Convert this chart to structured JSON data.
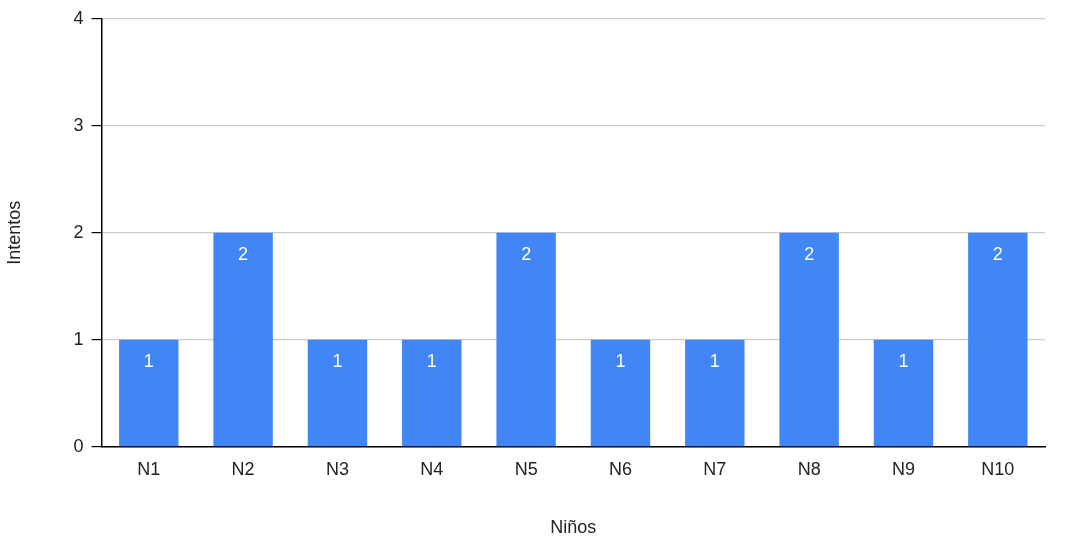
{
  "chart_data": {
    "type": "bar",
    "xlabel": "Niños",
    "ylabel": "Intentos",
    "categories": [
      "N1",
      "N2",
      "N3",
      "N4",
      "N5",
      "N6",
      "N7",
      "N8",
      "N9",
      "N10"
    ],
    "values": [
      1,
      2,
      1,
      1,
      2,
      1,
      1,
      2,
      1,
      2
    ],
    "color": "#4285f4",
    "ylim": [
      0,
      4
    ],
    "yticks": [
      0,
      1,
      2,
      3,
      4
    ],
    "grid": "y",
    "data_labels": true,
    "legend": false
  }
}
